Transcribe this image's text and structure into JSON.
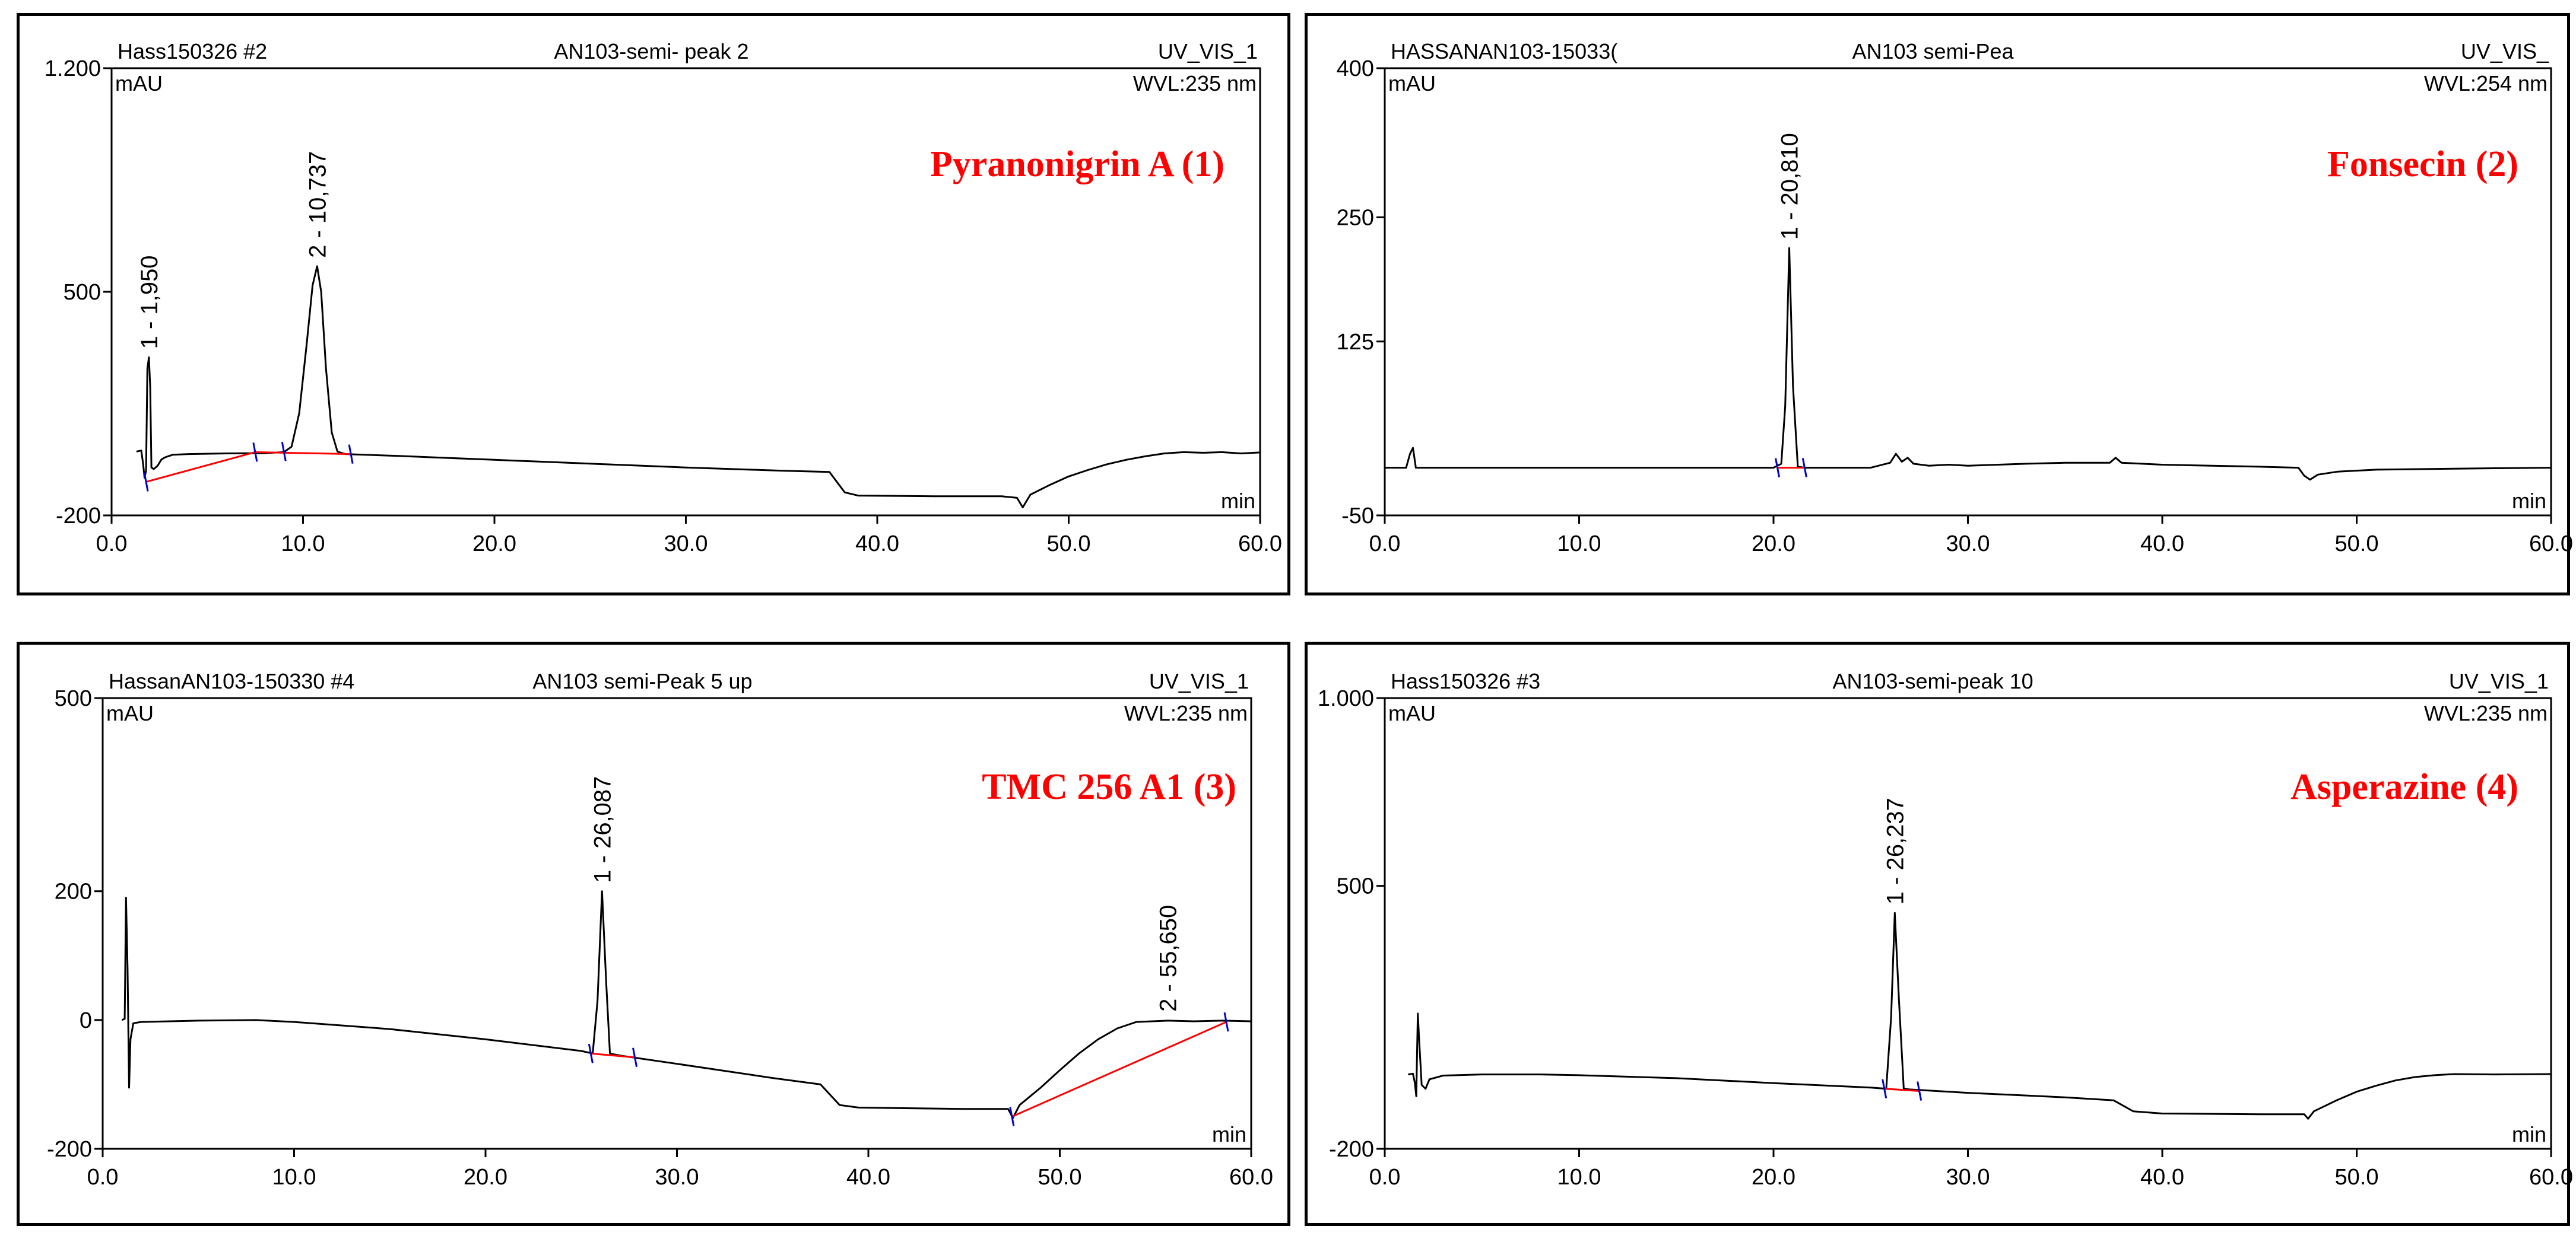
{
  "colors": {
    "trace": "#000000",
    "baseline": "#ff0000",
    "marker": "#0000cc",
    "compound": "#ff0000"
  },
  "chart_data": [
    {
      "type": "line",
      "header": {
        "left": "Hass150326 #2",
        "center": "AN103-semi- peak 2",
        "right": "UV_VIS_1"
      },
      "yunit": "mAU",
      "wavelength": "WVL:235 nm",
      "xunit": "min",
      "compound": "Pyranonigrin A (1)",
      "xlim": [
        0,
        60
      ],
      "ylim": [
        -200,
        1200
      ],
      "xticks": [
        "0.0",
        "10.0",
        "20.0",
        "30.0",
        "40.0",
        "50.0",
        "60.0"
      ],
      "yticks": [
        {
          "v": 1200,
          "t": "1.200"
        },
        {
          "v": 500,
          "t": "500"
        },
        {
          "v": -200,
          "t": "-200"
        }
      ],
      "peaks": [
        {
          "x": 1.95,
          "y": 295,
          "label": "1 - 1,950"
        },
        {
          "x": 10.737,
          "y": 580,
          "label": "2 - 10,737"
        }
      ],
      "trace": [
        [
          1.3,
          0
        ],
        [
          1.55,
          3
        ],
        [
          1.65,
          -40
        ],
        [
          1.72,
          -82
        ],
        [
          1.8,
          -60
        ],
        [
          1.87,
          260
        ],
        [
          1.95,
          295
        ],
        [
          2.02,
          200
        ],
        [
          2.08,
          -50
        ],
        [
          2.2,
          -55
        ],
        [
          2.4,
          -45
        ],
        [
          2.6,
          -25
        ],
        [
          2.8,
          -18
        ],
        [
          3.2,
          -10
        ],
        [
          4,
          -8
        ],
        [
          6,
          -6
        ],
        [
          8,
          -5
        ],
        [
          9,
          -2
        ],
        [
          9.4,
          15
        ],
        [
          9.8,
          120
        ],
        [
          10.2,
          340
        ],
        [
          10.5,
          520
        ],
        [
          10.737,
          580
        ],
        [
          10.95,
          500
        ],
        [
          11.2,
          260
        ],
        [
          11.5,
          60
        ],
        [
          11.8,
          0
        ],
        [
          12.2,
          -8
        ],
        [
          15,
          -14
        ],
        [
          20,
          -26
        ],
        [
          25,
          -38
        ],
        [
          30,
          -50
        ],
        [
          35,
          -60
        ],
        [
          37.5,
          -64
        ],
        [
          38.3,
          -128
        ],
        [
          39,
          -138
        ],
        [
          43,
          -140
        ],
        [
          46.5,
          -140
        ],
        [
          47.3,
          -145
        ],
        [
          47.6,
          -175
        ],
        [
          48,
          -135
        ],
        [
          49,
          -105
        ],
        [
          50,
          -78
        ],
        [
          51,
          -58
        ],
        [
          52,
          -40
        ],
        [
          53,
          -26
        ],
        [
          54,
          -15
        ],
        [
          55,
          -6
        ],
        [
          56,
          -2
        ],
        [
          57,
          -4
        ],
        [
          58,
          -2
        ],
        [
          59,
          -6
        ],
        [
          60,
          -3
        ]
      ],
      "baselines": [
        [
          [
            1.8,
            -95
          ],
          [
            7.5,
            -2
          ]
        ],
        [
          [
            7.5,
            -2
          ],
          [
            12.5,
            -8
          ]
        ]
      ],
      "markers": [
        [
          1.8,
          -95
        ],
        [
          7.5,
          -2
        ],
        [
          9,
          0
        ],
        [
          12.5,
          -8
        ]
      ]
    },
    {
      "type": "line",
      "header": {
        "left": "HASSANAN103-15033(",
        "center": "AN103 semi-Pea",
        "right": "UV_VIS_"
      },
      "yunit": "mAU",
      "wavelength": "WVL:254 nm",
      "xunit": "min",
      "compound": "Fonsecin (2)",
      "xlim": [
        0,
        60
      ],
      "ylim": [
        -50,
        400
      ],
      "xticks": [
        "0.0",
        "10.0",
        "20.0",
        "30.0",
        "40.0",
        "50.0",
        "60.0"
      ],
      "yticks": [
        {
          "v": 400,
          "t": "400"
        },
        {
          "v": 250,
          "t": "250"
        },
        {
          "v": 125,
          "t": "125"
        },
        {
          "v": -50,
          "t": "-50"
        }
      ],
      "peaks": [
        {
          "x": 20.81,
          "y": 219,
          "label": "1 - 20,810"
        }
      ],
      "trace": [
        [
          0,
          -2
        ],
        [
          1.1,
          -2
        ],
        [
          1.3,
          12
        ],
        [
          1.45,
          18
        ],
        [
          1.6,
          -2
        ],
        [
          2,
          -2
        ],
        [
          10,
          -2
        ],
        [
          20,
          -2
        ],
        [
          20.4,
          2
        ],
        [
          20.6,
          60
        ],
        [
          20.81,
          219
        ],
        [
          21,
          80
        ],
        [
          21.25,
          -1
        ],
        [
          21.6,
          -2
        ],
        [
          25,
          -2
        ],
        [
          26,
          3
        ],
        [
          26.3,
          12
        ],
        [
          26.6,
          4
        ],
        [
          26.9,
          8
        ],
        [
          27.2,
          2
        ],
        [
          28,
          0
        ],
        [
          29,
          1
        ],
        [
          30,
          0
        ],
        [
          33,
          2
        ],
        [
          35,
          3
        ],
        [
          37.3,
          3
        ],
        [
          37.6,
          8
        ],
        [
          37.9,
          3
        ],
        [
          40,
          1
        ],
        [
          45,
          -1
        ],
        [
          47,
          -2
        ],
        [
          47.3,
          -10
        ],
        [
          47.6,
          -14
        ],
        [
          48,
          -9
        ],
        [
          49,
          -6
        ],
        [
          51,
          -4
        ],
        [
          55,
          -3
        ],
        [
          60,
          -2
        ]
      ],
      "baselines": [
        [
          [
            20.2,
            -2
          ],
          [
            21.6,
            -2
          ]
        ]
      ],
      "markers": [
        [
          20.2,
          -2
        ],
        [
          21.6,
          -2
        ]
      ]
    },
    {
      "type": "line",
      "header": {
        "left": "HassanAN103-150330 #4",
        "center": "AN103 semi-Peak 5 up",
        "right": "UV_VIS_1"
      },
      "yunit": "mAU",
      "wavelength": "WVL:235 nm",
      "xunit": "min",
      "compound": "TMC 256 A1 (3)",
      "xlim": [
        0,
        60
      ],
      "ylim": [
        -200,
        500
      ],
      "xticks": [
        "0.0",
        "10.0",
        "20.0",
        "30.0",
        "40.0",
        "50.0",
        "60.0"
      ],
      "yticks": [
        {
          "v": 500,
          "t": "500"
        },
        {
          "v": 200,
          "t": "200"
        },
        {
          "v": 0,
          "t": "0"
        },
        {
          "v": -200,
          "t": "-200"
        }
      ],
      "peaks": [
        {
          "x": 26.087,
          "y": 200,
          "label": "1 - 26,087"
        },
        {
          "x": 55.65,
          "y": 0,
          "label": "2 - 55,650"
        }
      ],
      "trace": [
        [
          1,
          0
        ],
        [
          1.15,
          2
        ],
        [
          1.22,
          190
        ],
        [
          1.3,
          80
        ],
        [
          1.38,
          -105
        ],
        [
          1.45,
          -30
        ],
        [
          1.6,
          -5
        ],
        [
          2,
          -3
        ],
        [
          5,
          -1
        ],
        [
          8,
          0
        ],
        [
          10,
          -3
        ],
        [
          15,
          -14
        ],
        [
          20,
          -30
        ],
        [
          25,
          -48
        ],
        [
          25.6,
          -52
        ],
        [
          25.85,
          30
        ],
        [
          26.087,
          200
        ],
        [
          26.3,
          60
        ],
        [
          26.5,
          -52
        ],
        [
          27,
          -55
        ],
        [
          30,
          -68
        ],
        [
          35,
          -90
        ],
        [
          37.5,
          -100
        ],
        [
          38.5,
          -132
        ],
        [
          39.5,
          -136
        ],
        [
          45,
          -138
        ],
        [
          47.3,
          -138
        ],
        [
          47.55,
          -152
        ],
        [
          47.9,
          -132
        ],
        [
          49,
          -105
        ],
        [
          50,
          -78
        ],
        [
          51,
          -52
        ],
        [
          52,
          -30
        ],
        [
          53,
          -13
        ],
        [
          54,
          -3
        ],
        [
          55.65,
          -1
        ],
        [
          57,
          -2
        ],
        [
          58.5,
          -1
        ],
        [
          60,
          -2
        ]
      ],
      "baselines": [
        [
          [
            25.5,
            -52
          ],
          [
            27.8,
            -58
          ]
        ],
        [
          [
            47.5,
            -150
          ],
          [
            58.7,
            -3
          ]
        ]
      ],
      "markers": [
        [
          25.5,
          -52
        ],
        [
          27.8,
          -58
        ],
        [
          47.5,
          -150
        ],
        [
          58.7,
          -3
        ]
      ]
    },
    {
      "type": "line",
      "header": {
        "left": "Hass150326 #3",
        "center": "AN103-semi-peak 10",
        "right": "UV_VIS_1"
      },
      "yunit": "mAU",
      "wavelength": "WVL:235 nm",
      "xunit": "min",
      "compound": "Asperazine (4)",
      "xlim": [
        0,
        60
      ],
      "ylim": [
        -200,
        1000
      ],
      "xticks": [
        "0.0",
        "10.0",
        "20.0",
        "30.0",
        "40.0",
        "50.0",
        "60.0"
      ],
      "yticks": [
        {
          "v": 1000,
          "t": "1.000"
        },
        {
          "v": 500,
          "t": "500"
        },
        {
          "v": -200,
          "t": "-200"
        }
      ],
      "peaks": [
        {
          "x": 26.237,
          "y": 428,
          "label": "1 - 26,237"
        }
      ],
      "trace": [
        [
          1.2,
          -2
        ],
        [
          1.45,
          0
        ],
        [
          1.55,
          -25
        ],
        [
          1.62,
          -60
        ],
        [
          1.7,
          160
        ],
        [
          1.78,
          80
        ],
        [
          1.9,
          -30
        ],
        [
          2.1,
          -40
        ],
        [
          2.3,
          -15
        ],
        [
          3,
          -5
        ],
        [
          5,
          -2
        ],
        [
          8,
          -2
        ],
        [
          10,
          -4
        ],
        [
          15,
          -12
        ],
        [
          20,
          -25
        ],
        [
          25,
          -37
        ],
        [
          25.8,
          -40
        ],
        [
          26.05,
          150
        ],
        [
          26.237,
          428
        ],
        [
          26.45,
          200
        ],
        [
          26.7,
          -40
        ],
        [
          27,
          -42
        ],
        [
          30,
          -51
        ],
        [
          35,
          -63
        ],
        [
          37.5,
          -71
        ],
        [
          38.5,
          -100
        ],
        [
          40,
          -106
        ],
        [
          45,
          -108
        ],
        [
          47.3,
          -108
        ],
        [
          47.5,
          -120
        ],
        [
          47.8,
          -100
        ],
        [
          49,
          -70
        ],
        [
          50,
          -48
        ],
        [
          51,
          -32
        ],
        [
          52,
          -18
        ],
        [
          53,
          -9
        ],
        [
          54,
          -4
        ],
        [
          55,
          -1
        ],
        [
          57,
          -2
        ],
        [
          60,
          -1
        ]
      ],
      "baselines": [
        [
          [
            25.7,
            -40
          ],
          [
            27.5,
            -46
          ]
        ]
      ],
      "markers": [
        [
          25.7,
          -40
        ],
        [
          27.5,
          -46
        ]
      ]
    }
  ]
}
